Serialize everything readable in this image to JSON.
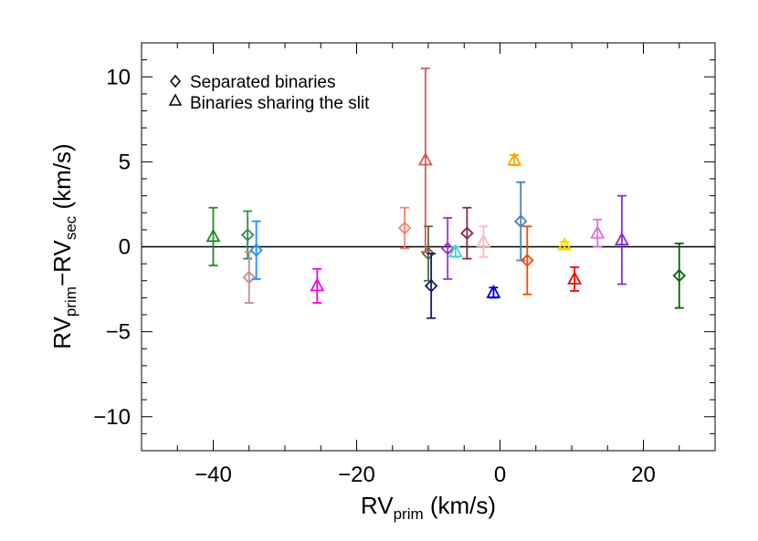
{
  "chart_data": {
    "type": "scatter",
    "xlabel": {
      "main": "RV",
      "sub": "prim",
      "unit": " (km/s)"
    },
    "ylabel": {
      "a": "RV",
      "a_sub": "prim",
      "dash": "−",
      "b": "RV",
      "b_sub": "sec",
      "unit": " (km/s)"
    },
    "xlim": [
      -50,
      30
    ],
    "ylim": [
      -12,
      12
    ],
    "xticks": [
      -40,
      -20,
      0,
      20
    ],
    "xtick_labels": [
      "−40",
      "−20",
      "0",
      "20"
    ],
    "yticks": [
      -10,
      -5,
      0,
      5,
      10
    ],
    "ytick_labels": [
      "−10",
      "−5",
      "0",
      "5",
      "10"
    ],
    "grid": false,
    "reference_line_y": 0,
    "legend_position": "top-left",
    "legend": [
      {
        "label": "Separated binaries",
        "marker": "diamond"
      },
      {
        "label": "Binaries sharing the slit",
        "marker": "triangle"
      }
    ],
    "series": [
      {
        "name": "Separated binaries",
        "marker": "diamond",
        "points": [
          {
            "x": -35.2,
            "y": 0.7,
            "err": 1.4,
            "color": "#2e8b57"
          },
          {
            "x": -35.0,
            "y": -1.8,
            "err": 1.5,
            "color": "#bc8f8f"
          },
          {
            "x": -34.0,
            "y": -0.2,
            "err": 1.7,
            "color": "#1e90ff"
          },
          {
            "x": -13.3,
            "y": 1.1,
            "err": 1.2,
            "color": "#fa8072"
          },
          {
            "x": -10.0,
            "y": -0.4,
            "err": 1.6,
            "color": "#556b2f"
          },
          {
            "x": -9.6,
            "y": -2.3,
            "err": 1.9,
            "color": "#191970"
          },
          {
            "x": -7.3,
            "y": -0.1,
            "err": 1.8,
            "color": "#9932cc"
          },
          {
            "x": -4.6,
            "y": 0.8,
            "err": 1.5,
            "color": "#8b2252"
          },
          {
            "x": 2.9,
            "y": 1.5,
            "err": 2.3,
            "color": "#4682b4"
          },
          {
            "x": 3.8,
            "y": -0.8,
            "err": 2.0,
            "color": "#ff4500"
          },
          {
            "x": 25.0,
            "y": -1.7,
            "err": 1.9,
            "color": "#006400"
          }
        ]
      },
      {
        "name": "Binaries sharing the slit",
        "marker": "triangle",
        "points": [
          {
            "x": -40.0,
            "y": 0.6,
            "err": 1.7,
            "color": "#228b22"
          },
          {
            "x": -25.5,
            "y": -2.3,
            "err": 1.0,
            "color": "#ee00ee"
          },
          {
            "x": -10.4,
            "y": 5.1,
            "err": 5.4,
            "color": "#cd5c5c"
          },
          {
            "x": -6.2,
            "y": -0.3,
            "err": 0.3,
            "color": "#48d1cc"
          },
          {
            "x": -2.3,
            "y": 0.3,
            "err": 0.9,
            "color": "#ffb6c1"
          },
          {
            "x": -0.9,
            "y": -2.7,
            "err": 0.3,
            "color": "#0000cd"
          },
          {
            "x": 2.0,
            "y": 5.1,
            "err": 0.3,
            "color": "#ffa500"
          },
          {
            "x": 9.0,
            "y": 0.1,
            "err": 0.2,
            "color": "#ffd700"
          },
          {
            "x": 10.4,
            "y": -1.9,
            "err": 0.7,
            "color": "#ff0000"
          },
          {
            "x": 13.6,
            "y": 0.8,
            "err": 0.8,
            "color": "#da70d6"
          },
          {
            "x": 17.0,
            "y": 0.4,
            "err": 2.6,
            "color": "#8a2be2"
          }
        ]
      }
    ]
  }
}
